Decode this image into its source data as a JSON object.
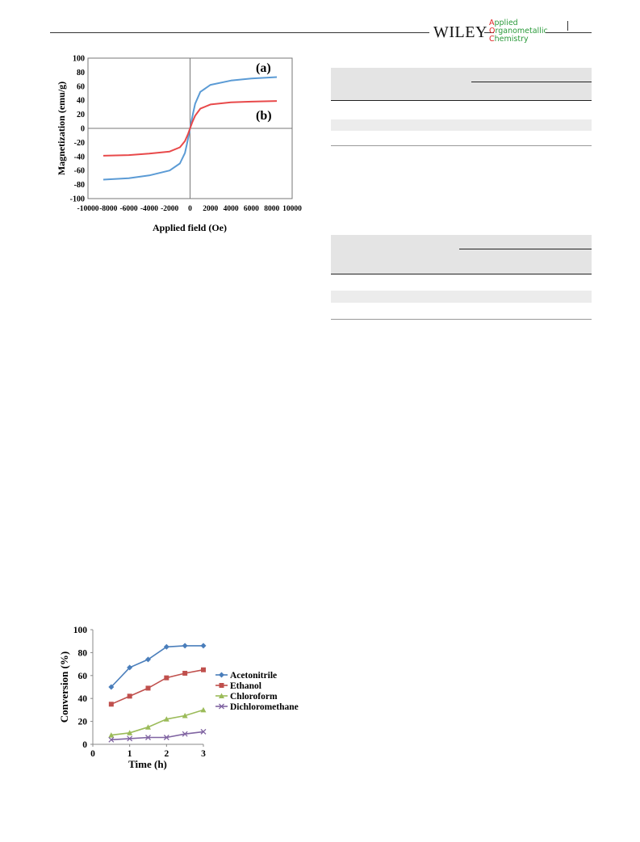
{
  "header": {
    "publisher": "WILEY",
    "journal_lines": [
      {
        "cap": "A",
        "rest": "pplied"
      },
      {
        "cap": "O",
        "rest": "rganometallic"
      },
      {
        "cap": "C",
        "rest": "hemistry"
      }
    ]
  },
  "chart_data": [
    {
      "type": "line",
      "xlabel": "Applied field (Oe)",
      "ylabel": "Magnetization (emu/g)",
      "xlim": [
        -10000,
        10000
      ],
      "ylim": [
        -100,
        100
      ],
      "xticks": [
        "-10000",
        "-8000",
        "-6000",
        "-4000",
        "-2000",
        "0",
        "2000",
        "4000",
        "6000",
        "8000",
        "10000"
      ],
      "yticks": [
        "100",
        "80",
        "60",
        "40",
        "20",
        "0",
        "-20",
        "-40",
        "-60",
        "-80",
        "-100"
      ],
      "series": [
        {
          "name": "(a)",
          "color": "#5b9bd5",
          "x": [
            -8500,
            -6000,
            -4000,
            -2000,
            -1000,
            -500,
            -200,
            0,
            200,
            500,
            1000,
            2000,
            4000,
            6000,
            8500
          ],
          "y": [
            -73,
            -71,
            -67,
            -60,
            -50,
            -35,
            -15,
            0,
            15,
            35,
            52,
            62,
            68,
            71,
            73
          ]
        },
        {
          "name": "(b)",
          "color": "#e8494a",
          "x": [
            -8500,
            -6000,
            -4000,
            -2000,
            -1000,
            -500,
            -200,
            0,
            200,
            500,
            1000,
            2000,
            4000,
            6000,
            8500
          ],
          "y": [
            -39,
            -38,
            -36,
            -33,
            -27,
            -18,
            -8,
            0,
            8,
            18,
            28,
            34,
            37,
            38,
            39
          ]
        }
      ]
    },
    {
      "type": "line",
      "xlabel": "Time (h)",
      "ylabel": "Conversion (%)",
      "xlim": [
        0,
        3
      ],
      "ylim": [
        0,
        100
      ],
      "xticks": [
        "0",
        "1",
        "2",
        "3"
      ],
      "yticks": [
        "100",
        "80",
        "60",
        "40",
        "20",
        "0"
      ],
      "legend_position": "right",
      "series": [
        {
          "name": "Acetonitrile",
          "color": "#4a7ebb",
          "marker": "diamond",
          "x": [
            0.5,
            1,
            1.5,
            2,
            2.5,
            3
          ],
          "y": [
            50,
            67,
            74,
            85,
            86,
            86
          ]
        },
        {
          "name": "Ethanol",
          "color": "#c0504d",
          "marker": "square",
          "x": [
            0.5,
            1,
            1.5,
            2,
            2.5,
            3
          ],
          "y": [
            35,
            42,
            49,
            58,
            62,
            65
          ]
        },
        {
          "name": "Chloroform",
          "color": "#9bbb59",
          "marker": "triangle",
          "x": [
            0.5,
            1,
            1.5,
            2,
            2.5,
            3
          ],
          "y": [
            8,
            10,
            15,
            22,
            25,
            30
          ]
        },
        {
          "name": "Dichloromethane",
          "color": "#8064a2",
          "marker": "x",
          "x": [
            0.5,
            1,
            1.5,
            2,
            2.5,
            3
          ],
          "y": [
            4,
            5,
            6,
            6,
            9,
            11
          ]
        }
      ]
    }
  ]
}
